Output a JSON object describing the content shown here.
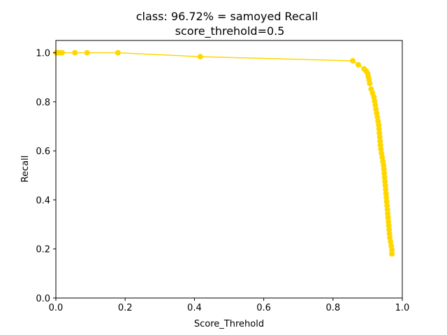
{
  "chart_data": {
    "type": "line",
    "title": "class: 96.72% = samoyed Recall",
    "subtitle": "score_threhold=0.5",
    "xlabel": "Score_Threhold",
    "ylabel": "Recall",
    "xlim": [
      0.0,
      1.0
    ],
    "ylim": [
      0.0,
      1.05
    ],
    "xticks": [
      "0.0",
      "0.2",
      "0.4",
      "0.6",
      "0.8",
      "1.0"
    ],
    "yticks": [
      "0.0",
      "0.2",
      "0.4",
      "0.6",
      "0.8",
      "1.0"
    ],
    "grid": false,
    "legend": "none",
    "series": [
      {
        "color": "#FFD700",
        "marker": "circle",
        "x": [
          0.001,
          0.003,
          0.006,
          0.01,
          0.018,
          0.055,
          0.09,
          0.179,
          0.417,
          0.857,
          0.873,
          0.89,
          0.896,
          0.9,
          0.902,
          0.904,
          0.906,
          0.91,
          0.914,
          0.918,
          0.92,
          0.922,
          0.924,
          0.926,
          0.928,
          0.93,
          0.932,
          0.933,
          0.934,
          0.935,
          0.936,
          0.937,
          0.938,
          0.94,
          0.942,
          0.944,
          0.946,
          0.947,
          0.948,
          0.949,
          0.95,
          0.951,
          0.952,
          0.953,
          0.954,
          0.955,
          0.956,
          0.957,
          0.958,
          0.959,
          0.96,
          0.961,
          0.962,
          0.963,
          0.964,
          0.966,
          0.968,
          0.97,
          0.97
        ],
        "values": [
          1.0,
          1.0,
          1.0,
          1.0,
          1.0,
          1.0,
          1.0,
          1.0,
          0.984,
          0.967,
          0.951,
          0.934,
          0.925,
          0.915,
          0.902,
          0.89,
          0.875,
          0.852,
          0.836,
          0.82,
          0.803,
          0.787,
          0.77,
          0.754,
          0.738,
          0.721,
          0.705,
          0.689,
          0.672,
          0.656,
          0.639,
          0.623,
          0.607,
          0.59,
          0.574,
          0.557,
          0.541,
          0.525,
          0.508,
          0.492,
          0.475,
          0.459,
          0.443,
          0.426,
          0.41,
          0.393,
          0.377,
          0.361,
          0.344,
          0.328,
          0.311,
          0.295,
          0.279,
          0.262,
          0.246,
          0.23,
          0.213,
          0.197,
          0.18
        ]
      }
    ]
  }
}
